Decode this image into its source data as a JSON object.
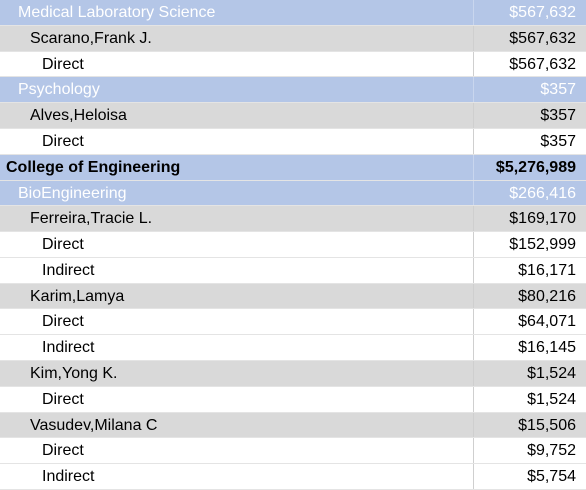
{
  "table": {
    "rows": [
      [
        "Medical Laboratory Science",
        "$567,632"
      ],
      [
        "Scarano,Frank J.",
        "$567,632"
      ],
      [
        "Direct",
        "$567,632"
      ],
      [
        "Psychology",
        "$357"
      ],
      [
        "Alves,Heloisa",
        "$357"
      ],
      [
        "Direct",
        "$357"
      ],
      [
        "College of Engineering",
        "$5,276,989"
      ],
      [
        "BioEngineering",
        "$266,416"
      ],
      [
        "Ferreira,Tracie L.",
        "$169,170"
      ],
      [
        "Direct",
        "$152,999"
      ],
      [
        "Indirect",
        "$16,171"
      ],
      [
        "Karim,Lamya",
        "$80,216"
      ],
      [
        "Direct",
        "$64,071"
      ],
      [
        "Indirect",
        "$16,145"
      ],
      [
        "Kim,Yong K.",
        "$1,524"
      ],
      [
        "Direct",
        "$1,524"
      ],
      [
        "Vasudev,Milana C",
        "$15,506"
      ],
      [
        "Direct",
        "$9,752"
      ],
      [
        "Indirect",
        "$5,754"
      ]
    ]
  }
}
